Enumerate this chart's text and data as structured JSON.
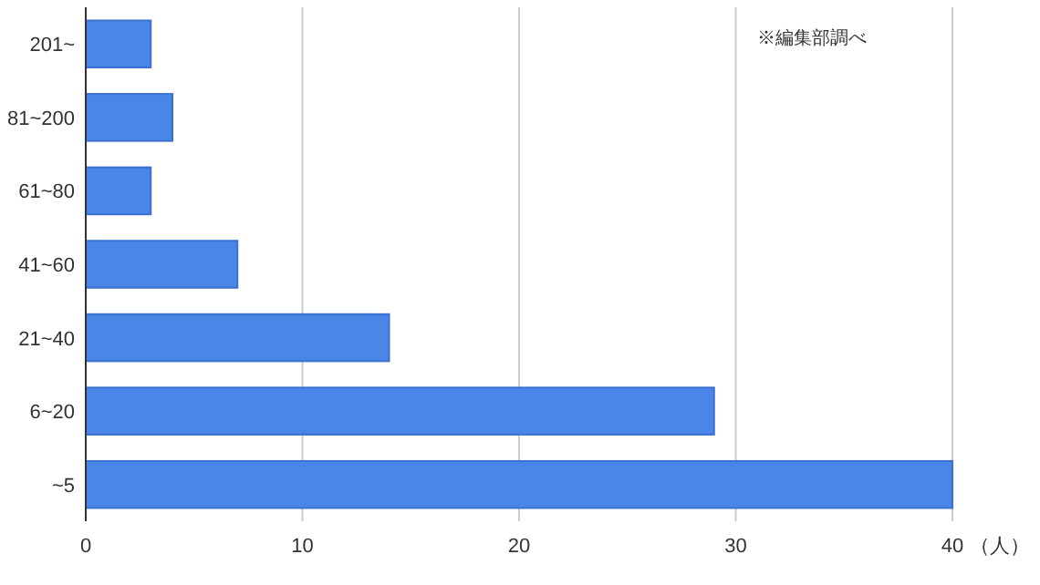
{
  "chart_data": {
    "type": "bar",
    "orientation": "horizontal",
    "categories": [
      "201~",
      "81~200",
      "61~80",
      "41~60",
      "21~40",
      "6~20",
      "~5"
    ],
    "values": [
      3,
      4,
      3,
      7,
      14,
      29,
      40
    ],
    "color": "#4a86e8",
    "xlim": [
      0,
      40
    ],
    "xticks": [
      0,
      10,
      20,
      30,
      40
    ],
    "xlabel": "（人）",
    "grid": "x",
    "annotations": [
      "※編集部調べ"
    ]
  }
}
